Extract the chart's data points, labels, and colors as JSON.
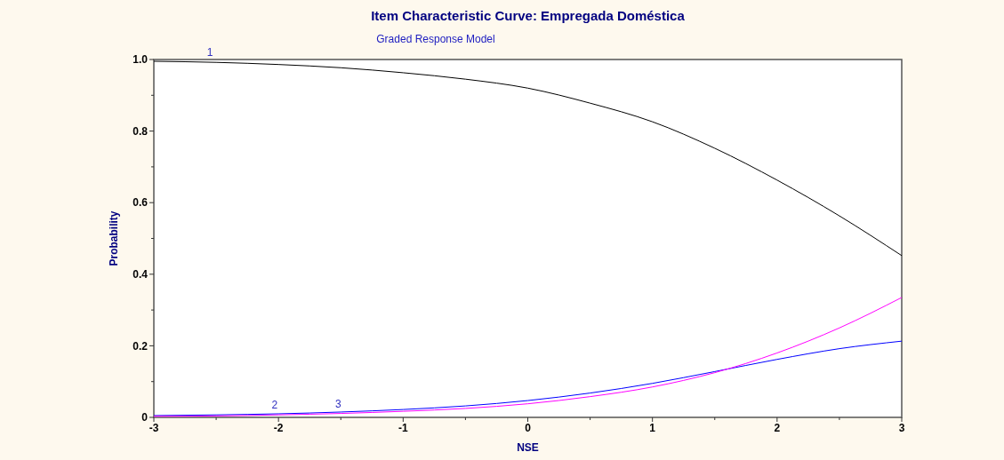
{
  "chart_data": {
    "type": "line",
    "title": "Item Characteristic Curve: Empregada Doméstica",
    "subtitle": "Graded Response Model",
    "xlabel": "NSE",
    "ylabel": "Probability",
    "x": [
      -3,
      -2.5,
      -2,
      -1.5,
      -1,
      -0.5,
      0,
      0.5,
      1,
      1.5,
      2,
      2.5,
      3
    ],
    "series": [
      {
        "color": "#000000",
        "values": [
          0.995,
          0.992,
          0.986,
          0.977,
          0.963,
          0.945,
          0.92,
          0.878,
          0.826,
          0.752,
          0.663,
          0.563,
          0.452
        ]
      },
      {
        "color": "#0000ff",
        "values": [
          0.005,
          0.007,
          0.01,
          0.015,
          0.022,
          0.032,
          0.047,
          0.068,
          0.095,
          0.128,
          0.162,
          0.192,
          0.213
        ]
      },
      {
        "color": "#ff00ff",
        "values": [
          0.003,
          0.004,
          0.007,
          0.011,
          0.017,
          0.025,
          0.038,
          0.058,
          0.085,
          0.125,
          0.18,
          0.25,
          0.335
        ]
      }
    ],
    "xlim": [
      -3,
      3
    ],
    "ylim": [
      0,
      1
    ],
    "xticks": [
      -3,
      {
        "value": -2.5,
        "label": null
      },
      -2,
      {
        "value": -1.5,
        "label": null
      },
      -1,
      {
        "value": -0.5,
        "label": null
      },
      0,
      {
        "value": 0.5,
        "label": null
      },
      1,
      {
        "value": 1.5,
        "label": null
      },
      2,
      {
        "value": 2.5,
        "label": null
      },
      3
    ],
    "yticks": [
      0,
      {
        "value": 0.1,
        "label": null
      },
      0.2,
      {
        "value": 0.3,
        "label": null
      },
      0.4,
      {
        "value": 0.5,
        "label": null
      },
      0.6,
      {
        "value": 0.7,
        "label": null
      },
      0.8,
      {
        "value": 0.9,
        "label": null
      },
      {
        "value": 1,
        "label": "1.0"
      }
    ],
    "annotations": [
      {
        "text": "1",
        "x": -2.55,
        "y": 0.994
      },
      {
        "text": "2",
        "x": -2.03,
        "y": 0.01
      },
      {
        "text": "3",
        "x": -1.52,
        "y": 0.013
      }
    ],
    "grid": false,
    "marker": "none",
    "line_style": "solid"
  }
}
